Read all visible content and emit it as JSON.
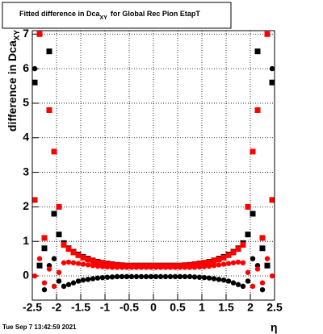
{
  "chart_data": {
    "type": "scatter",
    "title": "Fitted difference in Dca",
    "title_subscript": "XY",
    "title_suffix": "for Global Rec Pion EtapT",
    "y_label": "difference in Dca",
    "y_label_subscript": "XY",
    "x_label": "η",
    "footer": "Tue Sep  7 13:42:59 2021",
    "xlim": [
      -2.5,
      2.5
    ],
    "ylim": [
      -0.7,
      7.1
    ],
    "xticks": [
      -2.5,
      -2,
      -1.5,
      -1,
      -0.5,
      0,
      0.5,
      1,
      1.5,
      2,
      2.5
    ],
    "yticks": [
      0,
      1,
      2,
      3,
      4,
      5,
      6,
      7
    ],
    "grid": true,
    "x": [
      -2.45,
      -2.35,
      -2.25,
      -2.15,
      -2.05,
      -1.95,
      -1.85,
      -1.75,
      -1.65,
      -1.55,
      -1.45,
      -1.35,
      -1.25,
      -1.15,
      -1.05,
      -0.95,
      -0.85,
      -0.75,
      -0.65,
      -0.55,
      -0.45,
      -0.35,
      -0.25,
      -0.15,
      -0.05,
      0.05,
      0.15,
      0.25,
      0.35,
      0.45,
      0.55,
      0.65,
      0.75,
      0.85,
      0.95,
      1.05,
      1.15,
      1.25,
      1.35,
      1.45,
      1.55,
      1.65,
      1.75,
      1.85,
      1.95,
      2.05,
      2.15,
      2.25,
      2.35,
      2.45
    ],
    "series": [
      {
        "marker": "square",
        "color": "#000000",
        "values": [
          5.6,
          0.3,
          0.8,
          6.5,
          1.8,
          1.2,
          0.95,
          0.8,
          0.7,
          0.62,
          0.55,
          0.5,
          0.45,
          0.41,
          0.38,
          0.36,
          0.34,
          0.32,
          0.31,
          0.3,
          0.3,
          0.3,
          0.3,
          0.3,
          0.3,
          0.3,
          0.3,
          0.3,
          0.3,
          0.3,
          0.3,
          0.31,
          0.32,
          0.34,
          0.36,
          0.38,
          0.41,
          0.45,
          0.5,
          0.55,
          0.62,
          0.7,
          0.8,
          0.95,
          1.2,
          1.8,
          6.5,
          0.8,
          0.3,
          5.6
        ]
      },
      {
        "marker": "circle",
        "color": "#000000",
        "values": [
          6.0,
          0.3,
          -0.4,
          0.3,
          0.5,
          -0.15,
          -0.3,
          -0.25,
          -0.2,
          -0.15,
          -0.12,
          -0.1,
          -0.08,
          -0.06,
          -0.05,
          -0.04,
          -0.03,
          -0.02,
          -0.02,
          -0.02,
          -0.02,
          -0.02,
          -0.02,
          -0.02,
          -0.02,
          -0.02,
          -0.02,
          -0.02,
          -0.02,
          -0.02,
          -0.02,
          -0.02,
          -0.02,
          -0.03,
          -0.04,
          -0.05,
          -0.06,
          -0.08,
          -0.1,
          -0.12,
          -0.15,
          -0.2,
          -0.25,
          -0.3,
          -0.15,
          0.5,
          0.3,
          -0.4,
          0.3,
          6.0
        ]
      },
      {
        "marker": "square",
        "color": "#ff0000",
        "values": [
          2.2,
          7.0,
          1.1,
          4.8,
          3.6,
          2.0,
          0.9,
          0.78,
          0.68,
          0.6,
          0.53,
          0.48,
          0.44,
          0.4,
          0.37,
          0.35,
          0.33,
          0.31,
          0.3,
          0.29,
          0.29,
          0.29,
          0.29,
          0.29,
          0.29,
          0.29,
          0.29,
          0.29,
          0.29,
          0.29,
          0.29,
          0.3,
          0.31,
          0.33,
          0.35,
          0.37,
          0.4,
          0.44,
          0.48,
          0.53,
          0.6,
          0.68,
          0.78,
          0.9,
          2.0,
          3.6,
          4.8,
          1.1,
          7.0,
          2.2
        ]
      },
      {
        "marker": "circle",
        "color": "#ff0000",
        "values": [
          0.0,
          0.5,
          -0.2,
          0.2,
          -0.3,
          0.1,
          0.38,
          0.4,
          0.38,
          0.36,
          0.34,
          0.32,
          0.3,
          0.28,
          0.27,
          0.26,
          0.25,
          0.25,
          0.25,
          0.25,
          0.25,
          0.25,
          0.25,
          0.25,
          0.25,
          0.25,
          0.25,
          0.25,
          0.25,
          0.25,
          0.25,
          0.25,
          0.25,
          0.25,
          0.26,
          0.27,
          0.28,
          0.3,
          0.32,
          0.34,
          0.36,
          0.38,
          0.4,
          0.38,
          0.1,
          -0.3,
          0.2,
          -0.2,
          0.5,
          0.0
        ]
      }
    ]
  }
}
